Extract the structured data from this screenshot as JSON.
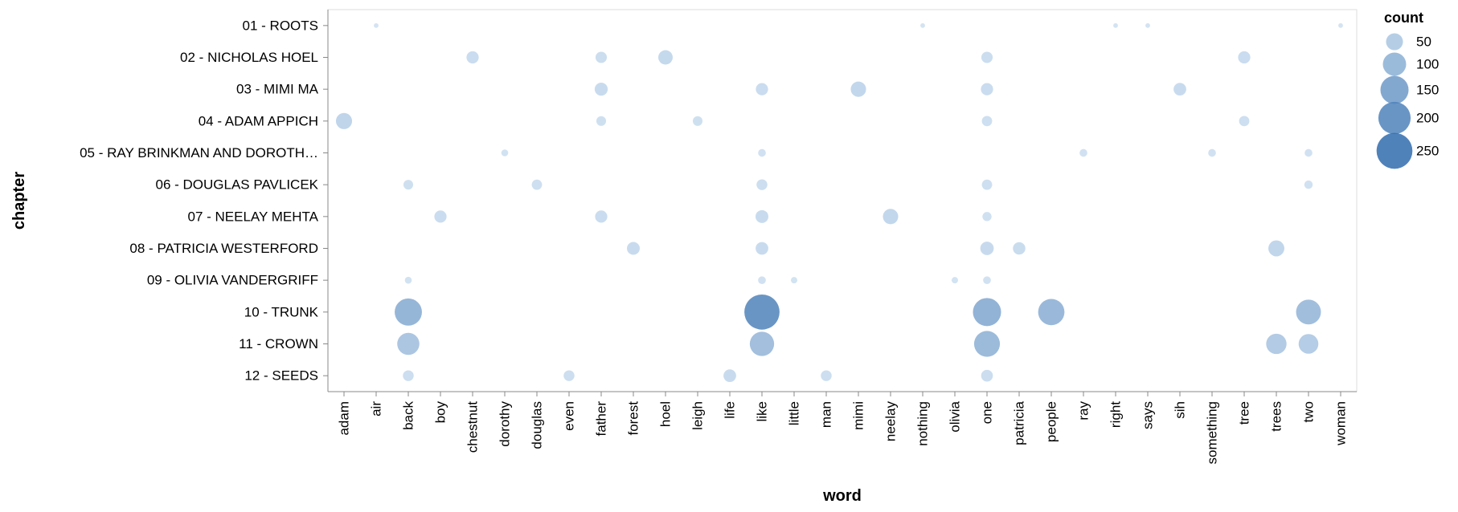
{
  "chart_data": {
    "type": "scatter",
    "xlabel": "word",
    "ylabel": "chapter",
    "x_categories": [
      "adam",
      "air",
      "back",
      "boy",
      "chestnut",
      "dorothy",
      "douglas",
      "even",
      "father",
      "forest",
      "hoel",
      "leigh",
      "life",
      "like",
      "little",
      "man",
      "mimi",
      "neelay",
      "nothing",
      "olivia",
      "one",
      "patricia",
      "people",
      "ray",
      "right",
      "says",
      "sih",
      "something",
      "tree",
      "trees",
      "two",
      "woman"
    ],
    "y_categories": [
      "01 - ROOTS",
      "02 - NICHOLAS HOEL",
      "03 - MIMI MA",
      "04 - ADAM APPICH",
      "05 - RAY BRINKMAN AND DOROTH…",
      "06 - DOUGLAS PAVLICEK",
      "07 - NEELAY MEHTA",
      "08 - PATRICIA WESTERFORD",
      "09 - OLIVIA VANDERGRIFF",
      "10 - TRUNK",
      "11 - CROWN",
      "12 - SEEDS"
    ],
    "size_field": "count",
    "size_domain": [
      0,
      280
    ],
    "legend": {
      "title": "count",
      "position": "right",
      "values": [
        50,
        100,
        150,
        200,
        250
      ],
      "labels": [
        "50",
        "100",
        "150",
        "200",
        "250"
      ]
    },
    "colors": {
      "light": "#c6dbef",
      "dark": "#1f5fa6",
      "stroke": "#cccccc",
      "axis": "#888888"
    },
    "points": [
      {
        "word": "air",
        "chapter": "01 - ROOTS",
        "count": 2
      },
      {
        "word": "nothing",
        "chapter": "01 - ROOTS",
        "count": 2
      },
      {
        "word": "right",
        "chapter": "01 - ROOTS",
        "count": 2
      },
      {
        "word": "says",
        "chapter": "01 - ROOTS",
        "count": 2
      },
      {
        "word": "woman",
        "chapter": "01 - ROOTS",
        "count": 2
      },
      {
        "word": "chestnut",
        "chapter": "02 - NICHOLAS HOEL",
        "count": 24
      },
      {
        "word": "father",
        "chapter": "02 - NICHOLAS HOEL",
        "count": 20
      },
      {
        "word": "hoel",
        "chapter": "02 - NICHOLAS HOEL",
        "count": 35
      },
      {
        "word": "one",
        "chapter": "02 - NICHOLAS HOEL",
        "count": 20
      },
      {
        "word": "tree",
        "chapter": "02 - NICHOLAS HOEL",
        "count": 24
      },
      {
        "word": "father",
        "chapter": "03 - MIMI MA",
        "count": 28
      },
      {
        "word": "like",
        "chapter": "03 - MIMI MA",
        "count": 24
      },
      {
        "word": "mimi",
        "chapter": "03 - MIMI MA",
        "count": 40
      },
      {
        "word": "one",
        "chapter": "03 - MIMI MA",
        "count": 24
      },
      {
        "word": "sih",
        "chapter": "03 - MIMI MA",
        "count": 26
      },
      {
        "word": "adam",
        "chapter": "04 - ADAM APPICH",
        "count": 45
      },
      {
        "word": "father",
        "chapter": "04 - ADAM APPICH",
        "count": 14
      },
      {
        "word": "leigh",
        "chapter": "04 - ADAM APPICH",
        "count": 14
      },
      {
        "word": "one",
        "chapter": "04 - ADAM APPICH",
        "count": 16
      },
      {
        "word": "tree",
        "chapter": "04 - ADAM APPICH",
        "count": 16
      },
      {
        "word": "dorothy",
        "chapter": "05 - RAY BRINKMAN AND DOROTH…",
        "count": 6
      },
      {
        "word": "like",
        "chapter": "05 - RAY BRINKMAN AND DOROTH…",
        "count": 8
      },
      {
        "word": "ray",
        "chapter": "05 - RAY BRINKMAN AND DOROTH…",
        "count": 8
      },
      {
        "word": "something",
        "chapter": "05 - RAY BRINKMAN AND DOROTH…",
        "count": 8
      },
      {
        "word": "two",
        "chapter": "05 - RAY BRINKMAN AND DOROTH…",
        "count": 8
      },
      {
        "word": "back",
        "chapter": "06 - DOUGLAS PAVLICEK",
        "count": 14
      },
      {
        "word": "douglas",
        "chapter": "06 - DOUGLAS PAVLICEK",
        "count": 16
      },
      {
        "word": "like",
        "chapter": "06 - DOUGLAS PAVLICEK",
        "count": 18
      },
      {
        "word": "one",
        "chapter": "06 - DOUGLAS PAVLICEK",
        "count": 16
      },
      {
        "word": "two",
        "chapter": "06 - DOUGLAS PAVLICEK",
        "count": 10
      },
      {
        "word": "boy",
        "chapter": "07 - NEELAY MEHTA",
        "count": 24
      },
      {
        "word": "father",
        "chapter": "07 - NEELAY MEHTA",
        "count": 24
      },
      {
        "word": "like",
        "chapter": "07 - NEELAY MEHTA",
        "count": 27
      },
      {
        "word": "neelay",
        "chapter": "07 - NEELAY MEHTA",
        "count": 40
      },
      {
        "word": "one",
        "chapter": "07 - NEELAY MEHTA",
        "count": 12
      },
      {
        "word": "forest",
        "chapter": "08 - PATRICIA WESTERFORD",
        "count": 27
      },
      {
        "word": "like",
        "chapter": "08 - PATRICIA WESTERFORD",
        "count": 26
      },
      {
        "word": "one",
        "chapter": "08 - PATRICIA WESTERFORD",
        "count": 30
      },
      {
        "word": "patricia",
        "chapter": "08 - PATRICIA WESTERFORD",
        "count": 25
      },
      {
        "word": "trees",
        "chapter": "08 - PATRICIA WESTERFORD",
        "count": 44
      },
      {
        "word": "back",
        "chapter": "09 - OLIVIA VANDERGRIFF",
        "count": 6
      },
      {
        "word": "like",
        "chapter": "09 - OLIVIA VANDERGRIFF",
        "count": 8
      },
      {
        "word": "little",
        "chapter": "09 - OLIVIA VANDERGRIFF",
        "count": 5
      },
      {
        "word": "olivia",
        "chapter": "09 - OLIVIA VANDERGRIFF",
        "count": 5
      },
      {
        "word": "one",
        "chapter": "09 - OLIVIA VANDERGRIFF",
        "count": 8
      },
      {
        "word": "back",
        "chapter": "10 - TRUNK",
        "count": 140
      },
      {
        "word": "like",
        "chapter": "10 - TRUNK",
        "count": 240
      },
      {
        "word": "one",
        "chapter": "10 - TRUNK",
        "count": 150
      },
      {
        "word": "people",
        "chapter": "10 - TRUNK",
        "count": 130
      },
      {
        "word": "two",
        "chapter": "10 - TRUNK",
        "count": 115
      },
      {
        "word": "back",
        "chapter": "11 - CROWN",
        "count": 90
      },
      {
        "word": "like",
        "chapter": "11 - CROWN",
        "count": 110
      },
      {
        "word": "one",
        "chapter": "11 - CROWN",
        "count": 125
      },
      {
        "word": "trees",
        "chapter": "11 - CROWN",
        "count": 75
      },
      {
        "word": "two",
        "chapter": "11 - CROWN",
        "count": 70
      },
      {
        "word": "back",
        "chapter": "12 - SEEDS",
        "count": 18
      },
      {
        "word": "even",
        "chapter": "12 - SEEDS",
        "count": 18
      },
      {
        "word": "life",
        "chapter": "12 - SEEDS",
        "count": 26
      },
      {
        "word": "man",
        "chapter": "12 - SEEDS",
        "count": 18
      },
      {
        "word": "one",
        "chapter": "12 - SEEDS",
        "count": 22
      }
    ]
  }
}
